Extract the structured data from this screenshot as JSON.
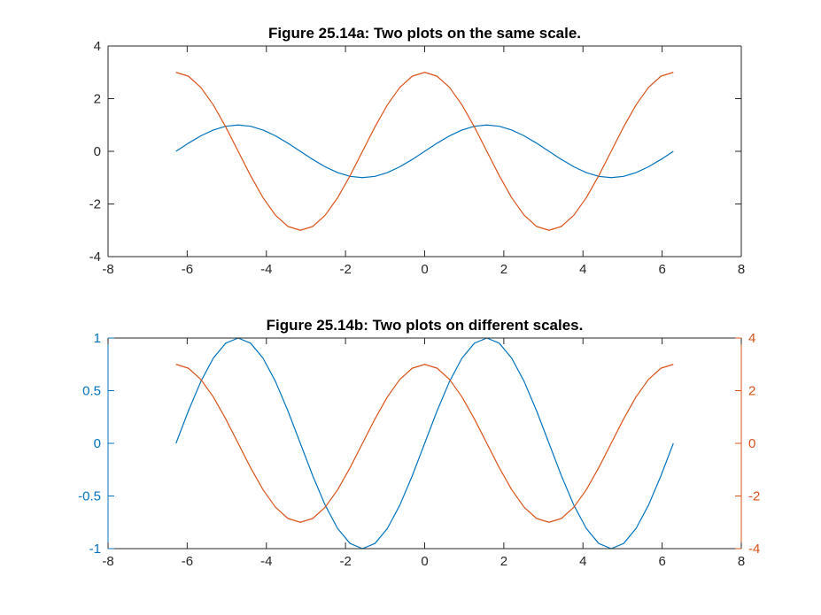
{
  "colors": {
    "series_blue": "#0072BD",
    "series_orange": "#D95319",
    "axis": "#262626",
    "background": "#ffffff"
  },
  "chart_data": [
    {
      "type": "line",
      "title": "Figure 25.14a: Two plots on the same scale.",
      "xlabel": "",
      "ylabel": "",
      "xlim": [
        -8,
        8
      ],
      "ylim": [
        -4,
        4
      ],
      "xticks": [
        -8,
        -6,
        -4,
        -2,
        0,
        2,
        4,
        6,
        8
      ],
      "yticks": [
        -4,
        -2,
        0,
        2,
        4
      ],
      "xtick_labels": [
        "-8",
        "-6",
        "-4",
        "-2",
        "0",
        "2",
        "4",
        "6",
        "8"
      ],
      "ytick_labels": [
        "-4",
        "-2",
        "0",
        "2",
        "4"
      ],
      "grid": false,
      "legend": "none",
      "series": [
        {
          "axis": "left",
          "color": "#0072BD",
          "x": [
            -6.2832,
            -5.969,
            -5.6549,
            -5.3407,
            -5.0265,
            -4.7124,
            -4.3982,
            -4.0841,
            -3.7699,
            -3.4558,
            -3.1416,
            -2.8274,
            -2.5133,
            -2.1991,
            -1.885,
            -1.5708,
            -1.2566,
            -0.9425,
            -0.6283,
            -0.3142,
            0.0,
            0.3142,
            0.6283,
            0.9425,
            1.2566,
            1.5708,
            1.885,
            2.1991,
            2.5133,
            2.8274,
            3.1416,
            3.4558,
            3.7699,
            4.0841,
            4.3982,
            4.7124,
            5.0265,
            5.3407,
            5.6549,
            5.969,
            6.2832
          ],
          "y": [
            0.0,
            0.309,
            0.5878,
            0.809,
            0.9511,
            1.0,
            0.9511,
            0.809,
            0.5878,
            0.309,
            0.0,
            -0.309,
            -0.5878,
            -0.809,
            -0.9511,
            -1.0,
            -0.9511,
            -0.809,
            -0.5878,
            -0.309,
            0.0,
            0.309,
            0.5878,
            0.809,
            0.9511,
            1.0,
            0.9511,
            0.809,
            0.5878,
            0.309,
            0.0,
            -0.309,
            -0.5878,
            -0.809,
            -0.9511,
            -1.0,
            -0.9511,
            -0.809,
            -0.5878,
            -0.309,
            0.0
          ]
        },
        {
          "axis": "left",
          "color": "#D95319",
          "x": [
            -6.2832,
            -5.969,
            -5.6549,
            -5.3407,
            -5.0265,
            -4.7124,
            -4.3982,
            -4.0841,
            -3.7699,
            -3.4558,
            -3.1416,
            -2.8274,
            -2.5133,
            -2.1991,
            -1.885,
            -1.5708,
            -1.2566,
            -0.9425,
            -0.6283,
            -0.3142,
            0.0,
            0.3142,
            0.6283,
            0.9425,
            1.2566,
            1.5708,
            1.885,
            2.1991,
            2.5133,
            2.8274,
            3.1416,
            3.4558,
            3.7699,
            4.0841,
            4.3982,
            4.7124,
            5.0265,
            5.3407,
            5.6549,
            5.969,
            6.2832
          ],
          "y": [
            3.0,
            2.8532,
            2.4271,
            1.7634,
            0.9271,
            0.0,
            -0.9271,
            -1.7634,
            -2.4271,
            -2.8532,
            -3.0,
            -2.8532,
            -2.4271,
            -1.7634,
            -0.9271,
            0.0,
            0.9271,
            1.7634,
            2.4271,
            2.8532,
            3.0,
            2.8532,
            2.4271,
            1.7634,
            0.9271,
            0.0,
            -0.9271,
            -1.7634,
            -2.4271,
            -2.8532,
            -3.0,
            -2.8532,
            -2.4271,
            -1.7634,
            -0.9271,
            0.0,
            0.9271,
            1.7634,
            2.4271,
            2.8532,
            3.0
          ]
        }
      ]
    },
    {
      "type": "line",
      "title": "Figure 25.14b: Two plots on different scales.",
      "xlabel": "",
      "ylabel": "",
      "xlim": [
        -8,
        8
      ],
      "ylim": [
        -1,
        1
      ],
      "y2lim": [
        -4,
        4
      ],
      "xticks": [
        -8,
        -6,
        -4,
        -2,
        0,
        2,
        4,
        6,
        8
      ],
      "yticks": [
        -1,
        -0.5,
        0,
        0.5,
        1
      ],
      "y2ticks": [
        -4,
        -2,
        0,
        2,
        4
      ],
      "xtick_labels": [
        "-8",
        "-6",
        "-4",
        "-2",
        "0",
        "2",
        "4",
        "6",
        "8"
      ],
      "ytick_labels": [
        "-1",
        "-0.5",
        "0",
        "0.5",
        "1"
      ],
      "y2tick_labels": [
        "-4",
        "-2",
        "0",
        "2",
        "4"
      ],
      "grid": false,
      "legend": "none",
      "series": [
        {
          "axis": "left",
          "color": "#0072BD",
          "x": [
            -6.2832,
            -5.969,
            -5.6549,
            -5.3407,
            -5.0265,
            -4.7124,
            -4.3982,
            -4.0841,
            -3.7699,
            -3.4558,
            -3.1416,
            -2.8274,
            -2.5133,
            -2.1991,
            -1.885,
            -1.5708,
            -1.2566,
            -0.9425,
            -0.6283,
            -0.3142,
            0.0,
            0.3142,
            0.6283,
            0.9425,
            1.2566,
            1.5708,
            1.885,
            2.1991,
            2.5133,
            2.8274,
            3.1416,
            3.4558,
            3.7699,
            4.0841,
            4.3982,
            4.7124,
            5.0265,
            5.3407,
            5.6549,
            5.969,
            6.2832
          ],
          "y": [
            0.0,
            0.309,
            0.5878,
            0.809,
            0.9511,
            1.0,
            0.9511,
            0.809,
            0.5878,
            0.309,
            0.0,
            -0.309,
            -0.5878,
            -0.809,
            -0.9511,
            -1.0,
            -0.9511,
            -0.809,
            -0.5878,
            -0.309,
            0.0,
            0.309,
            0.5878,
            0.809,
            0.9511,
            1.0,
            0.9511,
            0.809,
            0.5878,
            0.309,
            0.0,
            -0.309,
            -0.5878,
            -0.809,
            -0.9511,
            -1.0,
            -0.9511,
            -0.809,
            -0.5878,
            -0.309,
            0.0
          ]
        },
        {
          "axis": "right",
          "color": "#D95319",
          "x": [
            -6.2832,
            -5.969,
            -5.6549,
            -5.3407,
            -5.0265,
            -4.7124,
            -4.3982,
            -4.0841,
            -3.7699,
            -3.4558,
            -3.1416,
            -2.8274,
            -2.5133,
            -2.1991,
            -1.885,
            -1.5708,
            -1.2566,
            -0.9425,
            -0.6283,
            -0.3142,
            0.0,
            0.3142,
            0.6283,
            0.9425,
            1.2566,
            1.5708,
            1.885,
            2.1991,
            2.5133,
            2.8274,
            3.1416,
            3.4558,
            3.7699,
            4.0841,
            4.3982,
            4.7124,
            5.0265,
            5.3407,
            5.6549,
            5.969,
            6.2832
          ],
          "y": [
            3.0,
            2.8532,
            2.4271,
            1.7634,
            0.9271,
            0.0,
            -0.9271,
            -1.7634,
            -2.4271,
            -2.8532,
            -3.0,
            -2.8532,
            -2.4271,
            -1.7634,
            -0.9271,
            0.0,
            0.9271,
            1.7634,
            2.4271,
            2.8532,
            3.0,
            2.8532,
            2.4271,
            1.7634,
            0.9271,
            0.0,
            -0.9271,
            -1.7634,
            -2.4271,
            -2.8532,
            -3.0,
            -2.8532,
            -2.4271,
            -1.7634,
            -0.9271,
            0.0,
            0.9271,
            1.7634,
            2.4271,
            2.8532,
            3.0
          ]
        }
      ]
    }
  ]
}
